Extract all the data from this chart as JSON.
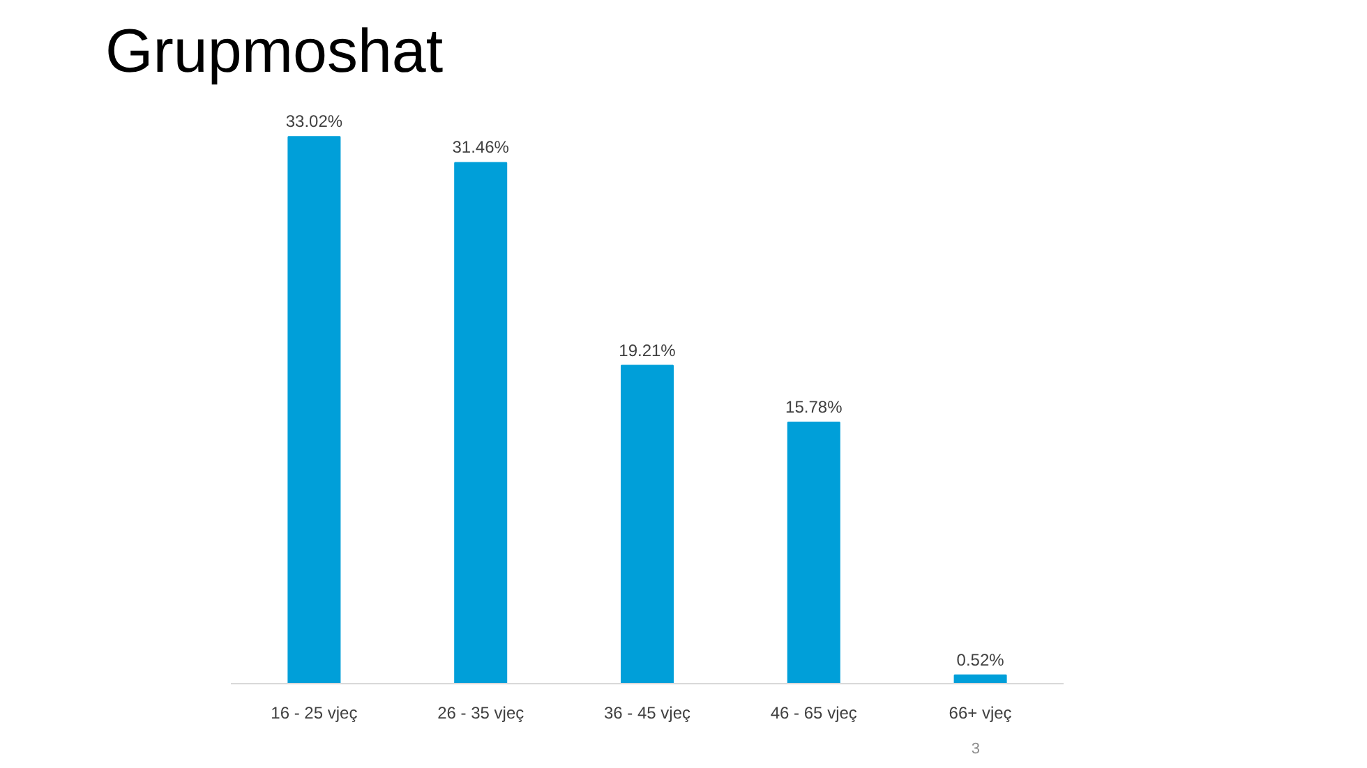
{
  "chart_data": {
    "type": "bar",
    "title": "Grupmoshat",
    "categories": [
      "16 - 25 vjeç",
      "26 - 35 vjeç",
      "36 - 45 vjeç",
      "46 - 65 vjeç",
      "66+ vjeç"
    ],
    "values": [
      33.02,
      31.46,
      19.21,
      15.78,
      0.52
    ],
    "value_labels": [
      "33.02%",
      "31.46%",
      "19.21%",
      "15.78%",
      "0.52%"
    ],
    "color": "#009fd9",
    "grid": false,
    "annotations": [
      "3"
    ]
  }
}
